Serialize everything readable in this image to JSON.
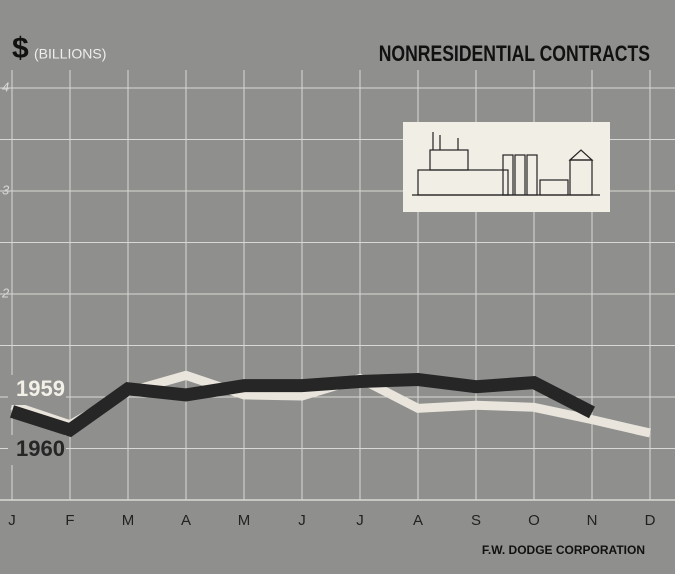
{
  "chart_data": {
    "type": "line",
    "title": "NONRESIDENTIAL CONTRACTS",
    "y_symbol": "$",
    "y_label": "(BILLIONS)",
    "source": "F.W. DODGE CORPORATION",
    "categories": [
      "J",
      "F",
      "M",
      "A",
      "M",
      "J",
      "J",
      "A",
      "S",
      "O",
      "N",
      "D"
    ],
    "series": [
      {
        "name": "1959",
        "color": "#e9e5dc",
        "values": [
          0.92,
          0.73,
          1.05,
          1.21,
          1.02,
          1.01,
          1.18,
          0.89,
          0.92,
          0.9,
          0.78,
          0.65
        ]
      },
      {
        "name": "1960",
        "color": "#262626",
        "values": [
          0.86,
          0.68,
          1.08,
          1.02,
          1.11,
          1.11,
          1.15,
          1.17,
          1.1,
          1.14,
          0.85,
          null
        ]
      }
    ],
    "ylim": [
      0,
      4
    ],
    "yticks": [
      2,
      3,
      4
    ],
    "gridlines": [
      0.5,
      1,
      1.5,
      2,
      2.5,
      3,
      3.5,
      4
    ],
    "grid": true
  }
}
